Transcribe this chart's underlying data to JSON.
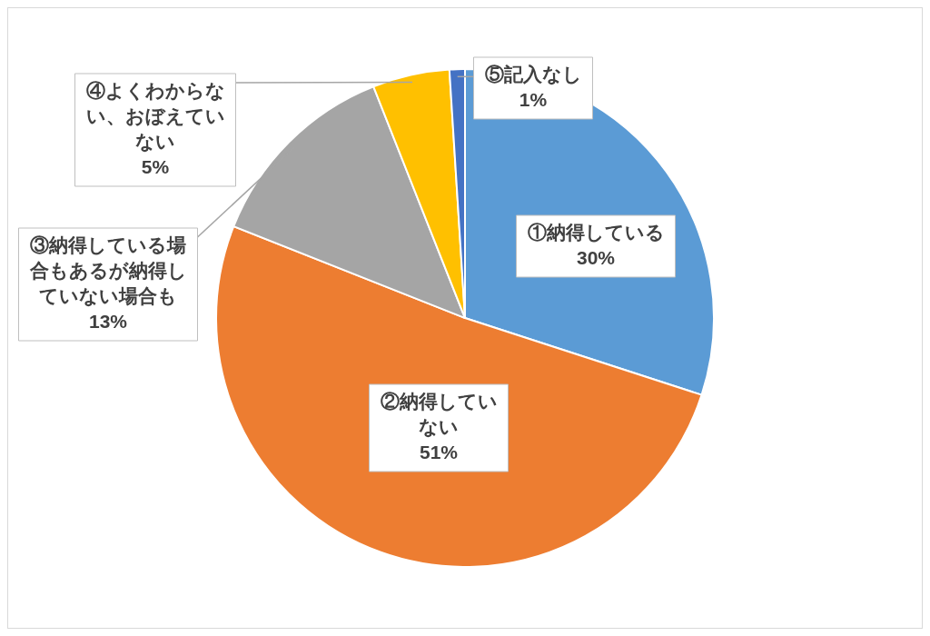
{
  "chart_data": {
    "type": "pie",
    "categories": [
      "①納得している",
      "②納得していない",
      "③納得している場合もあるが納得していない場合も",
      "④よくわからない、おぼえていない",
      "⑤記入なし"
    ],
    "values": [
      30,
      51,
      13,
      5,
      1
    ],
    "value_labels": [
      "30%",
      "51%",
      "13%",
      "5%",
      "1%"
    ],
    "colors": [
      "#5b9bd5",
      "#ed7d31",
      "#a5a5a5",
      "#ffc000",
      "#4472c4"
    ],
    "legend": false
  }
}
